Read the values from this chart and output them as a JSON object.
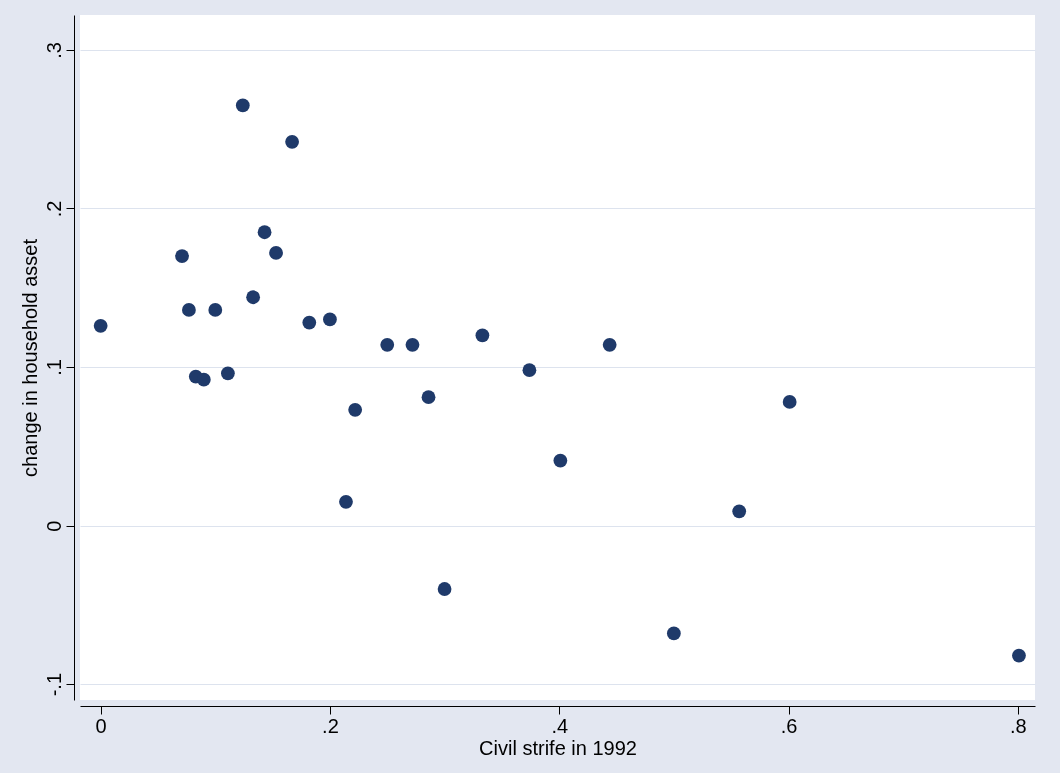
{
  "chart_data": {
    "type": "scatter",
    "xlabel": "Civil strife in 1992",
    "ylabel": "change in household asset",
    "x": [
      0,
      0.071,
      0.077,
      0.083,
      0.09,
      0.1,
      0.111,
      0.124,
      0.133,
      0.143,
      0.153,
      0.167,
      0.182,
      0.2,
      0.214,
      0.222,
      0.25,
      0.272,
      0.286,
      0.3,
      0.333,
      0.374,
      0.401,
      0.444,
      0.5,
      0.557,
      0.601,
      0.801
    ],
    "series": [
      {
        "color": "#1f3a6a",
        "values": [
          0.126,
          0.17,
          0.136,
          0.094,
          0.092,
          0.136,
          0.096,
          0.265,
          0.144,
          0.185,
          0.172,
          0.242,
          0.128,
          0.13,
          0.015,
          0.073,
          0.114,
          0.114,
          0.081,
          -0.04,
          0.12,
          0.098,
          0.041,
          0.114,
          -0.068,
          0.009,
          0.078,
          -0.082
        ]
      }
    ],
    "xlim": [
      -0.018,
      0.815
    ],
    "ylim": [
      -0.11,
      0.322
    ],
    "xticks": [
      0,
      {
        "value": 0.2,
        "label": ".2"
      },
      {
        "value": 0.4,
        "label": ".4"
      },
      {
        "value": 0.6,
        "label": ".6"
      },
      {
        "value": 0.8,
        "label": ".8"
      }
    ],
    "yticks": [
      {
        "value": -0.1,
        "label": "-.1"
      },
      0,
      {
        "value": 0.1,
        "label": ".1"
      },
      {
        "value": 0.2,
        "label": ".2"
      },
      {
        "value": 0.3,
        "label": ".3"
      }
    ],
    "grid": "y",
    "marker": "circle"
  }
}
